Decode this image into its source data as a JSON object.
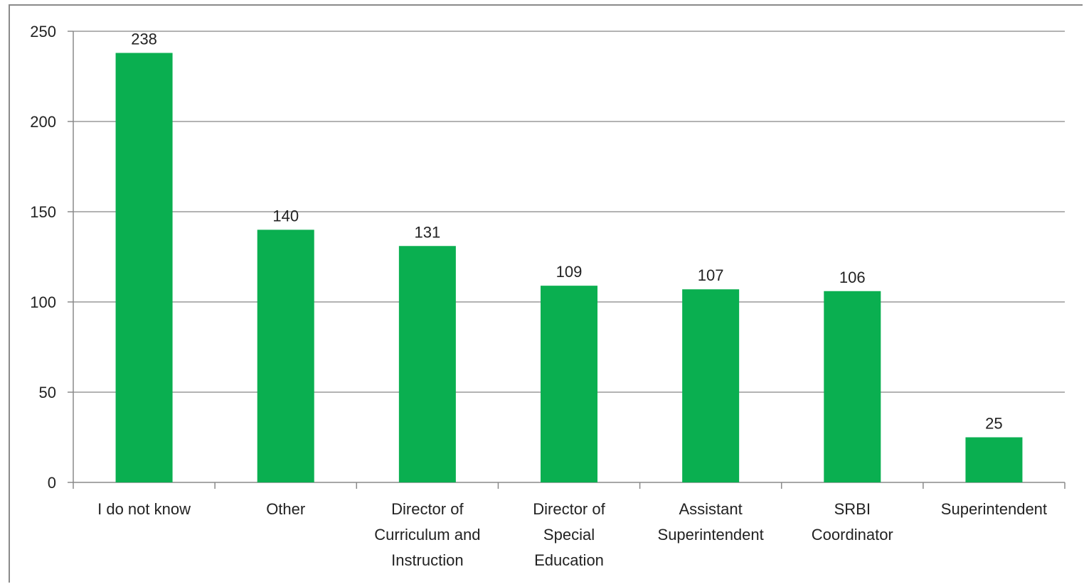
{
  "chart_data": {
    "type": "bar",
    "categories": [
      [
        "I do not know"
      ],
      [
        "Other"
      ],
      [
        "Director of",
        "Curriculum and",
        "Instruction"
      ],
      [
        "Director of",
        "Special",
        "Education"
      ],
      [
        "Assistant",
        "Superintendent"
      ],
      [
        "SRBI",
        "Coordinator"
      ],
      [
        "Superintendent"
      ]
    ],
    "values": [
      238,
      140,
      131,
      109,
      107,
      106,
      25
    ],
    "data_labels": [
      "238",
      "140",
      "131",
      "109",
      "107",
      "106",
      "25"
    ],
    "ylim": [
      0,
      250
    ],
    "yticks": [
      0,
      50,
      100,
      150,
      200,
      250
    ],
    "ytick_labels": [
      "0",
      "50",
      "100",
      "150",
      "200",
      "250"
    ],
    "grid": true,
    "colors": {
      "bar": "#0aaf50",
      "grid": "#9a9a9a",
      "axis": "#8a8a8a"
    }
  }
}
